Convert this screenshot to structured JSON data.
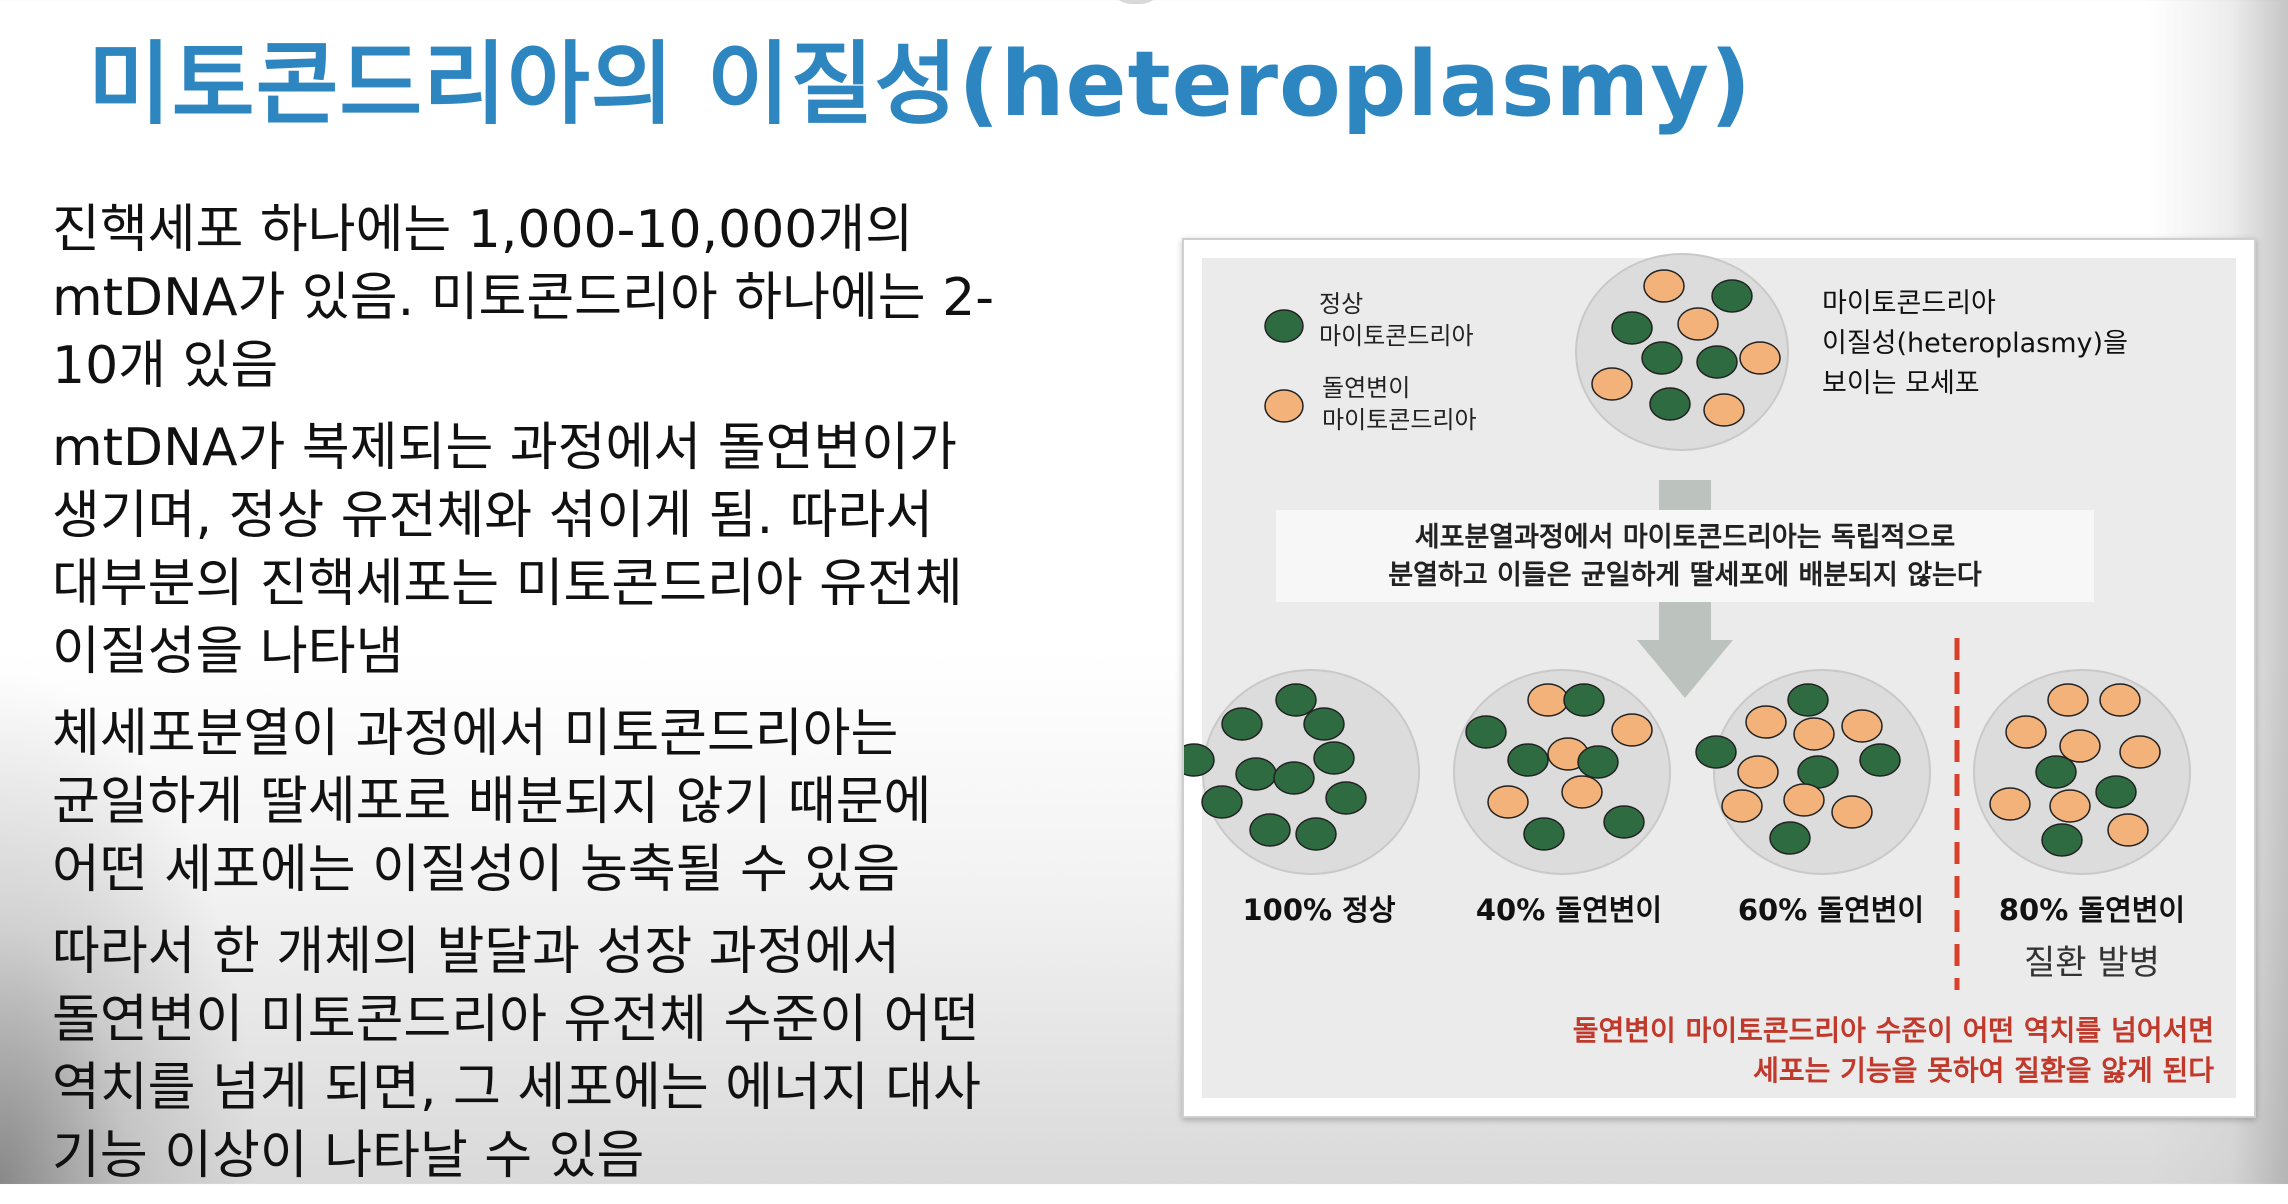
{
  "title": "미토콘드리아의 이질성(heteroplasmy)",
  "paragraphs": [
    [
      "진핵세포 하나에는 1,000-10,000개의",
      "mtDNA가 있음. 미토콘드리아 하나에는 2-",
      "10개 있음"
    ],
    [
      "mtDNA가 복제되는 과정에서 돌연변이가",
      "생기며, 정상 유전체와 섞이게 됨. 따라서",
      "대부분의 진핵세포는 미토콘드리아 유전체",
      "이질성을 나타냄"
    ],
    [
      "체세포분열이 과정에서 미토콘드리아는",
      "균일하게 딸세포로 배분되지 않기 때문에",
      "어떤 세포에는 이질성이 농축될 수 있음"
    ],
    [
      "따라서 한 개체의 발달과 성장 과정에서",
      "돌연변이 미토콘드리아 유전체 수준이 어떤",
      "역치를 넘게 되면, 그 세포에는 에너지 대사",
      "기능 이상이 나타날 수 있음"
    ]
  ],
  "figure": {
    "legend_normal": [
      "정상",
      "마이토콘드리아"
    ],
    "legend_mutant": [
      "돌연변이",
      "마이토콘드리아"
    ],
    "mother_cell_label": [
      "마이토콘드리아",
      "이질성(heteroplasmy)을",
      "보이는 모세포"
    ],
    "process_text": [
      "세포분열과정에서 마이토콘드리아는 독립적으로",
      "분열하고 이들은 균일하게 딸세포에 배분되지 않는다"
    ],
    "daughter_labels": [
      "100% 정상",
      "40% 돌연변이",
      "60% 돌연변이",
      "80% 돌연변이"
    ],
    "daughter_mutant_fraction": [
      0,
      0.4,
      0.6,
      0.8
    ],
    "disease_label": "질환 발병",
    "warning_text": [
      "돌연변이 마이토콘드리아 수준이 어떤 역치를 넘어서면",
      "세포는 기능을 못하여 질환을 앓게 된다"
    ],
    "colors": {
      "normal": "#2e6b40",
      "mutant": "#f2b27a",
      "cell": "#dcdcdc",
      "arrow": "#bcc2bd",
      "threshold": "#d9402b",
      "warning": "#c0392b"
    }
  }
}
